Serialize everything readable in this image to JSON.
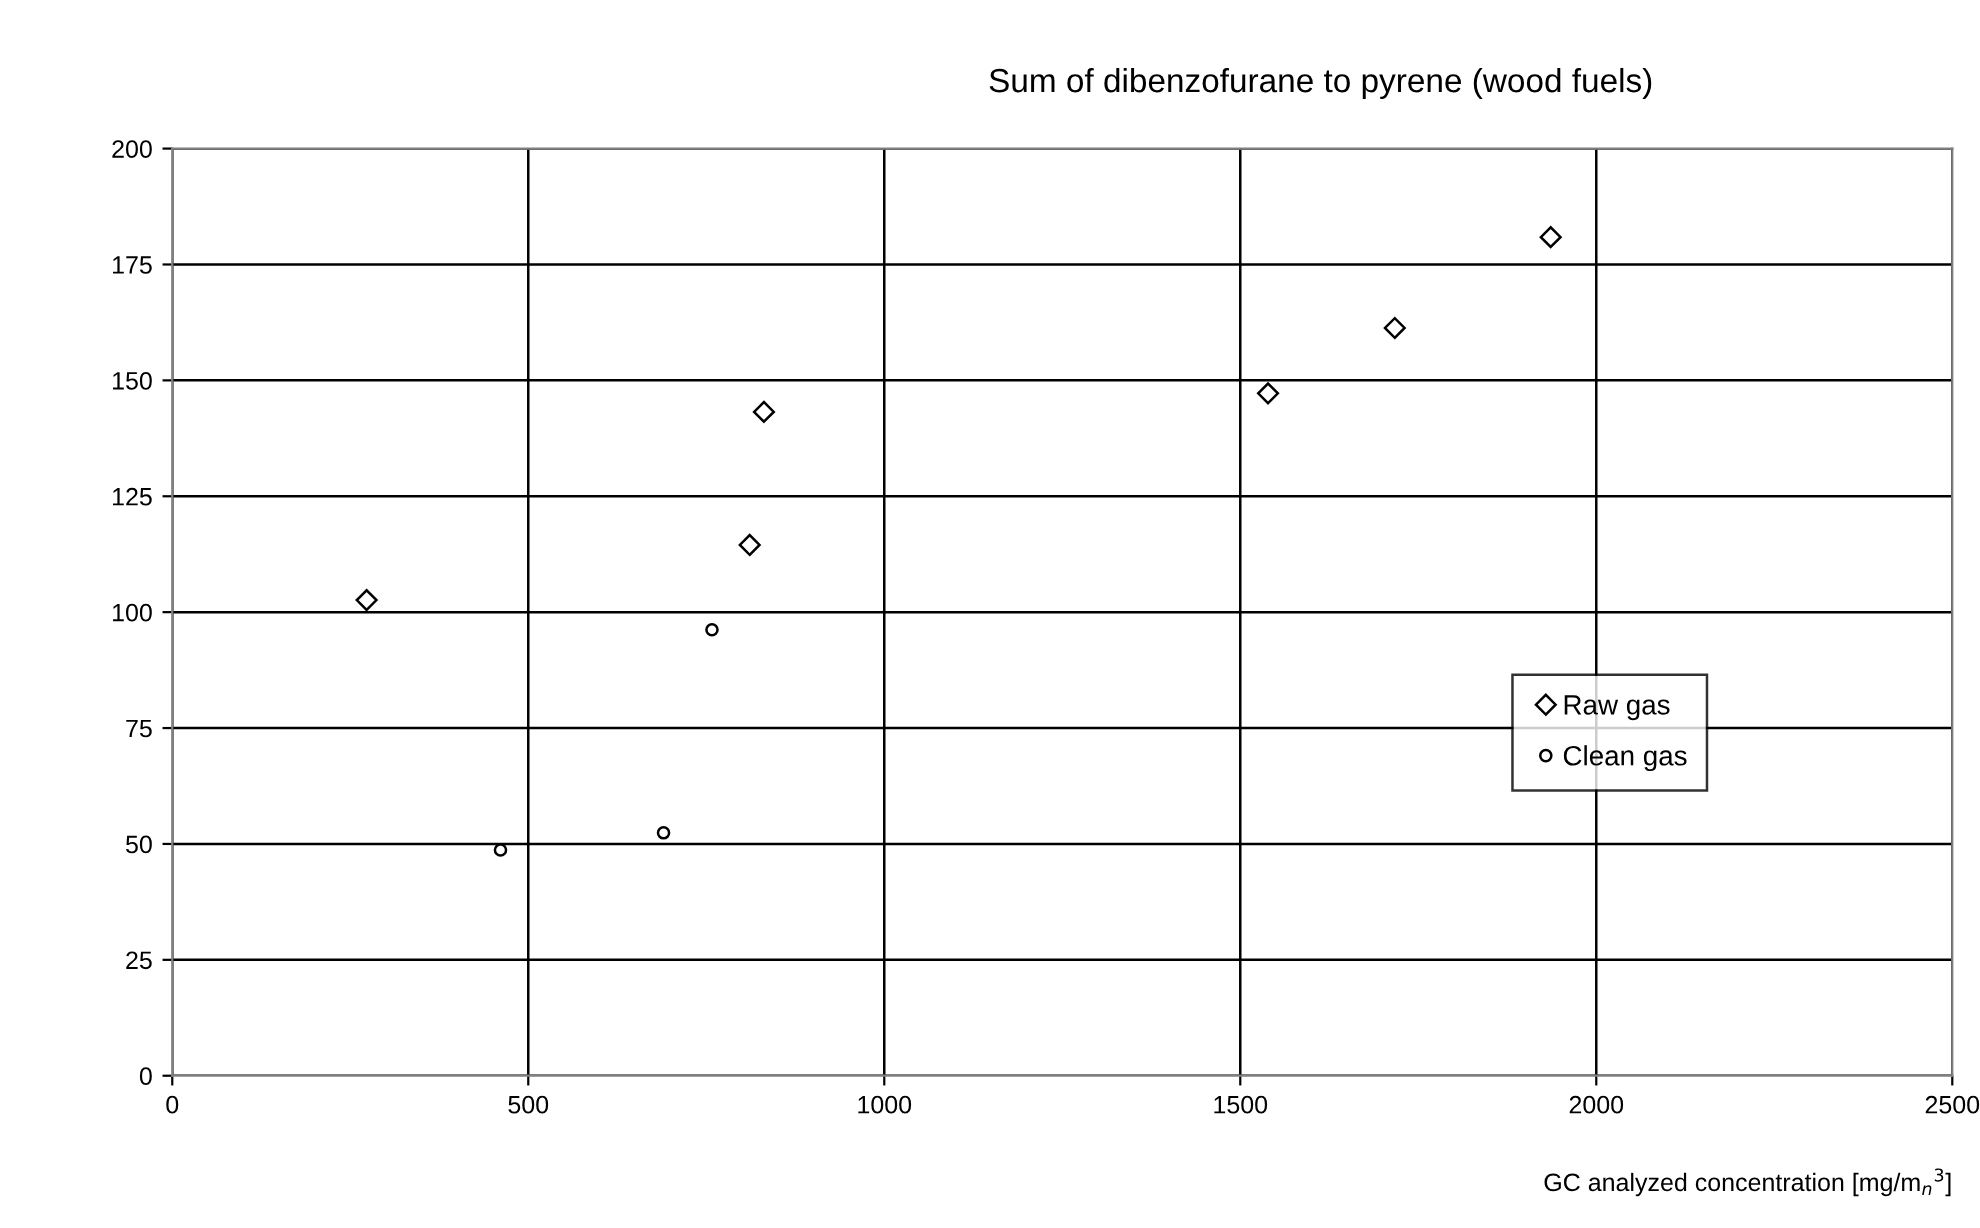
{
  "chart_data": {
    "type": "scatter",
    "title": "Sum of dibenzofurane to pyrene (wood fuels)",
    "xlabel": "GC analyzed concentration [mg/m$_{n}$$^{3}$]",
    "xlim": [
      0,
      2500
    ],
    "xticks": [
      0,
      500,
      1000,
      1500,
      2000,
      2500
    ],
    "ylim": [
      0,
      200
    ],
    "yticks": [
      0,
      25,
      50,
      75,
      100,
      125,
      150,
      175,
      200
    ],
    "grid": true,
    "legend": "right",
    "series": [
      {
        "name": "Raw gas",
        "color": "#000000",
        "marker": "diamond",
        "x": [
          273,
          811,
          831,
          1539,
          1717,
          1936
        ],
        "values": [
          102.6,
          114.5,
          143.2,
          147.2,
          161.3,
          180.9
        ]
      },
      {
        "name": "Clean gas",
        "color": "#000000",
        "marker": "circle",
        "x": [
          461,
          690,
          758
        ],
        "values": [
          48.7,
          52.4,
          96.2
        ]
      }
    ]
  }
}
